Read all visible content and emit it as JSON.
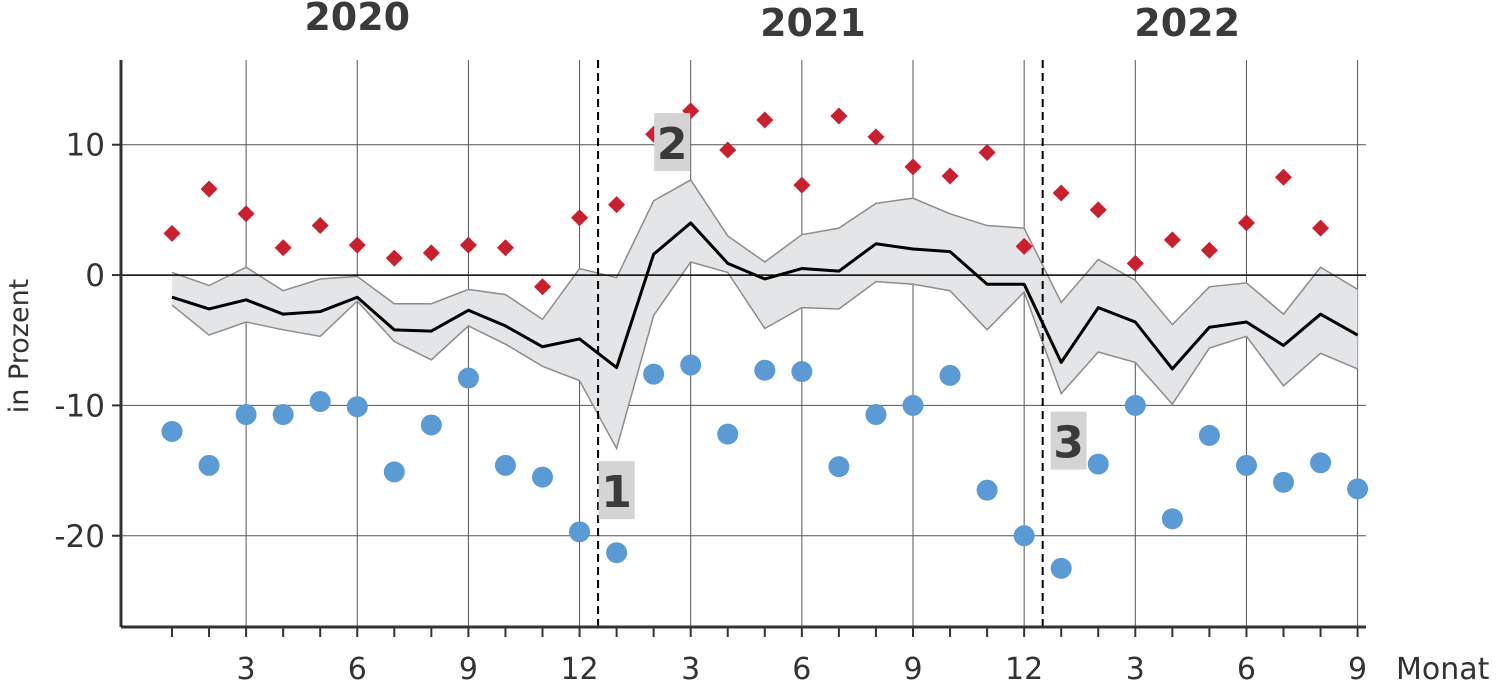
{
  "chart_data": {
    "type": "line",
    "ylabel": "in Prozent",
    "xlabel": "Monat",
    "ylim": [
      -27,
      16.5
    ],
    "yticks": [
      10,
      0,
      -10,
      -20
    ],
    "ytick_labels": [
      "10",
      "0",
      "-10",
      "-20"
    ],
    "x_tick_months": [
      3,
      6,
      9,
      12,
      15,
      18,
      21,
      24,
      27,
      30,
      33
    ],
    "x_tick_labels": [
      "3",
      "6",
      "9",
      "12",
      "3",
      "6",
      "9",
      "12",
      "3",
      "6",
      "9"
    ],
    "years": [
      {
        "label": "2020",
        "center_month": 6.0
      },
      {
        "label": "2021",
        "center_month": 18.3
      },
      {
        "label": "2022",
        "center_month": 28.4
      }
    ],
    "year_dividers": [
      12.5,
      24.5
    ],
    "month_index": [
      1,
      2,
      3,
      4,
      5,
      6,
      7,
      8,
      9,
      10,
      11,
      12,
      13,
      14,
      15,
      16,
      17,
      18,
      19,
      20,
      21,
      22,
      23,
      24,
      25,
      26,
      27,
      28,
      29,
      30,
      31,
      32,
      33
    ],
    "series": [
      {
        "name": "",
        "marker": "line",
        "color": "#000000",
        "values": [
          -1.7,
          -2.6,
          -1.9,
          -3.0,
          -2.8,
          -1.7,
          -4.2,
          -4.3,
          -2.7,
          -3.9,
          -5.5,
          -4.9,
          -7.1,
          1.6,
          4.0,
          0.9,
          -0.3,
          0.5,
          0.3,
          2.4,
          2.0,
          1.8,
          -0.7,
          -0.7,
          -6.7,
          -2.5,
          -3.6,
          -7.2,
          -4.0,
          -3.6,
          -5.4,
          -3.0,
          -4.6
        ]
      },
      {
        "name": "",
        "marker": "diamond",
        "color": "#c8202f",
        "values": [
          3.2,
          6.6,
          4.7,
          2.1,
          3.8,
          2.3,
          1.3,
          1.7,
          2.3,
          2.1,
          -0.9,
          4.4,
          5.4,
          10.8,
          12.6,
          9.6,
          11.9,
          6.9,
          12.2,
          10.6,
          8.3,
          7.6,
          9.4,
          2.2,
          6.3,
          5.0,
          0.9,
          2.7,
          1.9,
          4.0,
          7.5,
          3.6
        ]
      },
      {
        "name": "",
        "marker": "circle",
        "color": "#5b9bd5",
        "values": [
          -12.0,
          -14.6,
          -10.7,
          -10.7,
          -9.7,
          -10.1,
          -15.1,
          -11.5,
          -7.9,
          -14.6,
          -15.5,
          -19.7,
          -21.3,
          -7.6,
          -6.9,
          -12.2,
          -7.3,
          -7.4,
          -14.7,
          -10.7,
          -10.0,
          -7.7,
          -16.5,
          -20.0,
          -22.5,
          -14.5,
          -10.0,
          -18.7,
          -12.3,
          -14.6,
          -15.9,
          -14.4,
          -16.4
        ]
      }
    ],
    "band": {
      "upper": [
        0.2,
        -0.8,
        0.6,
        -1.2,
        -0.3,
        -0.1,
        -2.2,
        -2.2,
        -1.1,
        -1.5,
        -3.4,
        0.5,
        -0.2,
        5.7,
        7.3,
        3.0,
        1.0,
        3.1,
        3.6,
        5.5,
        5.9,
        4.7,
        3.8,
        3.6,
        -2.1,
        1.2,
        -0.4,
        -3.8,
        -0.9,
        -0.6,
        -3.0,
        0.6,
        -1.1
      ],
      "lower": [
        -2.3,
        -4.6,
        -3.6,
        -4.2,
        -4.7,
        -2.0,
        -5.1,
        -6.5,
        -3.9,
        -5.3,
        -7.0,
        -8.1,
        -13.3,
        -3.1,
        1.0,
        0.2,
        -4.1,
        -2.5,
        -2.6,
        -0.5,
        -0.7,
        -1.2,
        -4.2,
        -1.3,
        -9.1,
        -5.9,
        -6.7,
        -9.9,
        -5.6,
        -4.7,
        -8.5,
        -6.0,
        -7.2
      ],
      "fill": "#e4e5e7",
      "stroke": "#8c8c8c"
    },
    "annotations": [
      {
        "label": "1",
        "month": 13.0,
        "y": -16.5
      },
      {
        "label": "2",
        "month": 14.5,
        "y": 10.2
      },
      {
        "label": "3",
        "month": 25.2,
        "y": -12.7
      }
    ],
    "grid": true
  }
}
